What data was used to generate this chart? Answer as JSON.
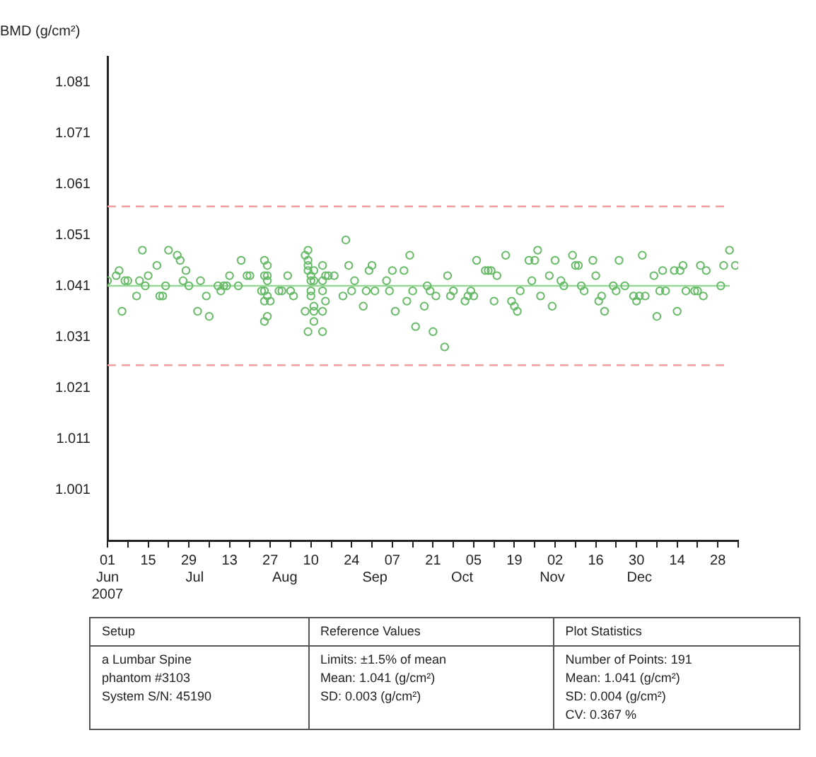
{
  "chart_data": {
    "type": "scatter",
    "ylabel": "BMD (g/cm²)",
    "xlim": [
      "2007-06-01",
      "2008-01-04"
    ],
    "ylim": [
      0.991,
      1.086
    ],
    "xticks": [
      {
        "value": "2007-06-01",
        "label": "01"
      },
      {
        "value": "2007-06-08",
        "label": null
      },
      {
        "value": "2007-06-15",
        "label": "15"
      },
      {
        "value": "2007-06-22",
        "label": null
      },
      {
        "value": "2007-06-29",
        "label": "29"
      },
      {
        "value": "2007-07-06",
        "label": null
      },
      {
        "value": "2007-07-13",
        "label": "13"
      },
      {
        "value": "2007-07-20",
        "label": null
      },
      {
        "value": "2007-07-27",
        "label": "27"
      },
      {
        "value": "2007-08-03",
        "label": null
      },
      {
        "value": "2007-08-10",
        "label": "10"
      },
      {
        "value": "2007-08-17",
        "label": null
      },
      {
        "value": "2007-08-24",
        "label": "24"
      },
      {
        "value": "2007-08-31",
        "label": null
      },
      {
        "value": "2007-09-07",
        "label": "07"
      },
      {
        "value": "2007-09-14",
        "label": null
      },
      {
        "value": "2007-09-21",
        "label": "21"
      },
      {
        "value": "2007-09-28",
        "label": null
      },
      {
        "value": "2007-10-05",
        "label": "05"
      },
      {
        "value": "2007-10-12",
        "label": null
      },
      {
        "value": "2007-10-19",
        "label": "19"
      },
      {
        "value": "2007-10-26",
        "label": null
      },
      {
        "value": "2007-11-02",
        "label": "02"
      },
      {
        "value": "2007-11-09",
        "label": null
      },
      {
        "value": "2007-11-16",
        "label": "16"
      },
      {
        "value": "2007-11-23",
        "label": null
      },
      {
        "value": "2007-11-30",
        "label": "30"
      },
      {
        "value": "2007-12-07",
        "label": null
      },
      {
        "value": "2007-12-14",
        "label": "14"
      },
      {
        "value": "2007-12-21",
        "label": null
      },
      {
        "value": "2007-12-28",
        "label": "28"
      },
      {
        "value": "2008-01-04",
        "label": null
      }
    ],
    "yticks": [
      1.001,
      1.011,
      1.021,
      1.031,
      1.041,
      1.051,
      1.061,
      1.071,
      1.081
    ],
    "grid": false,
    "legend": false,
    "marker": "circle",
    "ref_lines": [
      {
        "axis": "y",
        "value": 1.041,
        "color": "#99d699",
        "line_style": "solid"
      },
      {
        "axis": "y",
        "value": 1.0566,
        "color": "#f0a0a0",
        "line_style": "dashed"
      },
      {
        "axis": "y",
        "value": 1.0254,
        "color": "#f0a0a0",
        "line_style": "dashed"
      }
    ],
    "series": [
      {
        "color": "#66bb66",
        "x": [
          "2007-06-01",
          "2007-06-04",
          "2007-06-05",
          "2007-06-06",
          "2007-06-07",
          "2007-06-08",
          "2007-06-11",
          "2007-06-12",
          "2007-06-13",
          "2007-06-14",
          "2007-06-15",
          "2007-06-18",
          "2007-06-19",
          "2007-06-20",
          "2007-06-21",
          "2007-06-22",
          "2007-06-25",
          "2007-06-26",
          "2007-06-27",
          "2007-06-28",
          "2007-06-29",
          "2007-07-02",
          "2007-07-03",
          "2007-07-05",
          "2007-07-06",
          "2007-07-09",
          "2007-07-10",
          "2007-07-11",
          "2007-07-12",
          "2007-07-13",
          "2007-07-16",
          "2007-07-17",
          "2007-07-19",
          "2007-07-20",
          "2007-07-24",
          "2007-07-25",
          "2007-07-26",
          "2007-07-25",
          "2007-07-26",
          "2007-07-25",
          "2007-07-26",
          "2007-07-25",
          "2007-07-26",
          "2007-07-25",
          "2007-07-26",
          "2007-07-27",
          "2007-07-30",
          "2007-07-31",
          "2007-08-02",
          "2007-08-03",
          "2007-08-04",
          "2007-08-08",
          "2007-08-09",
          "2007-08-09",
          "2007-08-09",
          "2007-08-09",
          "2007-08-10",
          "2007-08-10",
          "2007-08-10",
          "2007-08-10",
          "2007-08-11",
          "2007-08-08",
          "2007-08-09",
          "2007-08-11",
          "2007-08-11",
          "2007-08-11",
          "2007-08-11",
          "2007-08-14",
          "2007-08-14",
          "2007-08-14",
          "2007-08-14",
          "2007-08-15",
          "2007-08-14",
          "2007-08-15",
          "2007-08-16",
          "2007-08-18",
          "2007-08-21",
          "2007-08-22",
          "2007-08-23",
          "2007-08-24",
          "2007-08-25",
          "2007-08-28",
          "2007-08-29",
          "2007-08-30",
          "2007-08-31",
          "2007-09-01",
          "2007-09-05",
          "2007-09-06",
          "2007-09-07",
          "2007-09-08",
          "2007-09-11",
          "2007-09-12",
          "2007-09-13",
          "2007-09-14",
          "2007-09-15",
          "2007-09-18",
          "2007-09-19",
          "2007-09-20",
          "2007-09-21",
          "2007-09-22",
          "2007-09-25",
          "2007-09-26",
          "2007-09-27",
          "2007-09-28",
          "2007-10-02",
          "2007-10-03",
          "2007-10-04",
          "2007-10-05",
          "2007-10-06",
          "2007-10-09",
          "2007-10-10",
          "2007-10-11",
          "2007-10-13",
          "2007-10-12",
          "2007-10-16",
          "2007-10-18",
          "2007-10-19",
          "2007-10-20",
          "2007-10-21",
          "2007-10-24",
          "2007-10-25",
          "2007-10-26",
          "2007-10-27",
          "2007-10-28",
          "2007-10-31",
          "2007-11-01",
          "2007-11-02",
          "2007-11-04",
          "2007-11-05",
          "2007-11-08",
          "2007-11-09",
          "2007-11-10",
          "2007-11-11",
          "2007-11-12",
          "2007-11-15",
          "2007-11-16",
          "2007-11-17",
          "2007-11-18",
          "2007-11-19",
          "2007-11-22",
          "2007-11-23",
          "2007-11-24",
          "2007-11-26",
          "2007-11-29",
          "2007-11-30",
          "2007-12-01",
          "2007-12-02",
          "2007-12-03",
          "2007-12-06",
          "2007-12-07",
          "2007-12-08",
          "2007-12-09",
          "2007-12-10",
          "2007-12-13",
          "2007-12-14",
          "2007-12-15",
          "2007-12-16",
          "2007-12-17",
          "2007-12-20",
          "2007-12-21",
          "2007-12-22",
          "2007-12-23",
          "2007-12-24",
          "2007-12-29",
          "2007-12-30",
          "2008-01-01",
          "2008-01-03"
        ],
        "values": [
          1.042,
          1.043,
          1.044,
          1.036,
          1.042,
          1.042,
          1.039,
          1.042,
          1.048,
          1.041,
          1.043,
          1.045,
          1.039,
          1.039,
          1.041,
          1.048,
          1.047,
          1.046,
          1.042,
          1.044,
          1.041,
          1.036,
          1.042,
          1.039,
          1.035,
          1.041,
          1.04,
          1.041,
          1.041,
          1.043,
          1.041,
          1.046,
          1.043,
          1.043,
          1.04,
          1.046,
          1.045,
          1.043,
          1.042,
          1.04,
          1.039,
          1.038,
          1.035,
          1.034,
          1.043,
          1.038,
          1.04,
          1.04,
          1.043,
          1.04,
          1.039,
          1.047,
          1.048,
          1.046,
          1.045,
          1.044,
          1.043,
          1.042,
          1.04,
          1.039,
          1.037,
          1.036,
          1.032,
          1.034,
          1.036,
          1.044,
          1.042,
          1.032,
          1.036,
          1.04,
          1.045,
          1.038,
          1.042,
          1.043,
          1.043,
          1.043,
          1.039,
          1.05,
          1.045,
          1.04,
          1.042,
          1.037,
          1.04,
          1.044,
          1.045,
          1.04,
          1.042,
          1.04,
          1.044,
          1.036,
          1.044,
          1.038,
          1.047,
          1.04,
          1.033,
          1.037,
          1.041,
          1.04,
          1.032,
          1.039,
          1.029,
          1.043,
          1.039,
          1.04,
          1.038,
          1.039,
          1.04,
          1.039,
          1.046,
          1.044,
          1.044,
          1.044,
          1.043,
          1.038,
          1.047,
          1.038,
          1.037,
          1.036,
          1.04,
          1.046,
          1.042,
          1.046,
          1.048,
          1.039,
          1.043,
          1.037,
          1.046,
          1.042,
          1.041,
          1.047,
          1.045,
          1.045,
          1.041,
          1.04,
          1.046,
          1.043,
          1.038,
          1.039,
          1.036,
          1.041,
          1.04,
          1.046,
          1.041,
          1.039,
          1.038,
          1.039,
          1.047,
          1.039,
          1.043,
          1.035,
          1.04,
          1.044,
          1.04,
          1.044,
          1.036,
          1.044,
          1.045,
          1.04,
          1.04,
          1.04,
          1.045,
          1.039,
          1.044,
          1.041,
          1.045,
          1.048,
          1.045
        ]
      }
    ],
    "x2lim": [
      "2007-06-01",
      "2008-01-04"
    ],
    "x2ticks": [
      {
        "value": "2007-06-01",
        "label": "Jun\n2007"
      },
      {
        "value": "2007-07-01",
        "label": "Jul"
      },
      {
        "value": "2007-08-01",
        "label": "Aug"
      },
      {
        "value": "2007-09-01",
        "label": "Sep"
      },
      {
        "value": "2007-10-01",
        "label": "Oct"
      },
      {
        "value": "2007-11-01",
        "label": "Nov"
      },
      {
        "value": "2007-12-01",
        "label": "Dec"
      }
    ],
    "annotations": [
      "Setup",
      "Reference Values",
      "Plot Statistics",
      "a Lumbar Spine\nphantom #3103\nSystem S/N:  45190",
      "Limits: ±1.5% of mean\nMean: 1.041 (g/cm²)\nSD: 0.003 (g/cm²)",
      "Number of Points: 191\nMean: 1.041 (g/cm²)\nSD: 0.004 (g/cm²)\nCV: 0.367 %"
    ]
  }
}
